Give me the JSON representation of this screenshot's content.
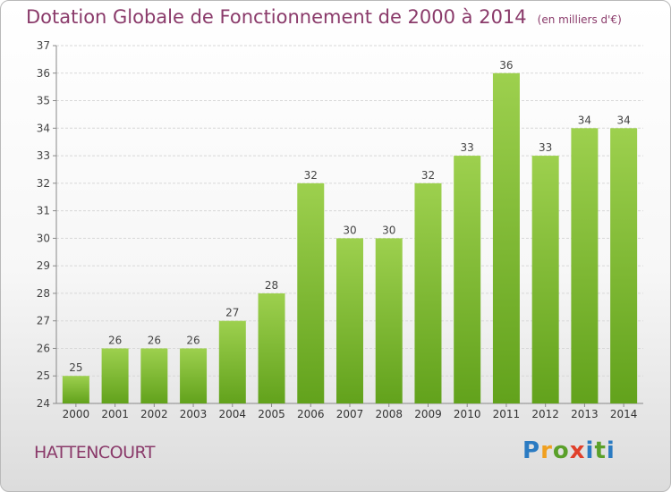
{
  "header": {
    "title": "Dotation Globale de Fonctionnement de 2000 à 2014",
    "subtitle": "(en milliers d'€)"
  },
  "commune": "HATTENCOURT",
  "logo": {
    "text": "Proxiti",
    "letters": [
      "P",
      "r",
      "o",
      "x",
      "i",
      "t",
      "i"
    ]
  },
  "colors": {
    "bar_top": "#9dd04e",
    "bar_bottom": "#62a21c",
    "title": "#8a3a6a"
  },
  "chart_data": {
    "type": "bar",
    "title": "Dotation Globale de Fonctionnement de 2000 à 2014",
    "subtitle": "(en milliers d'€)",
    "categories": [
      "2000",
      "2001",
      "2002",
      "2003",
      "2004",
      "2005",
      "2006",
      "2007",
      "2008",
      "2009",
      "2010",
      "2011",
      "2012",
      "2013",
      "2014"
    ],
    "values": [
      25,
      26,
      26,
      26,
      27,
      28,
      32,
      30,
      30,
      32,
      33,
      36,
      33,
      34,
      34
    ],
    "xlabel": "",
    "ylabel": "",
    "ylim": [
      24,
      37
    ],
    "yticks": [
      24,
      25,
      26,
      27,
      28,
      29,
      30,
      31,
      32,
      33,
      34,
      35,
      36,
      37
    ],
    "grid": true,
    "data_labels": true
  }
}
